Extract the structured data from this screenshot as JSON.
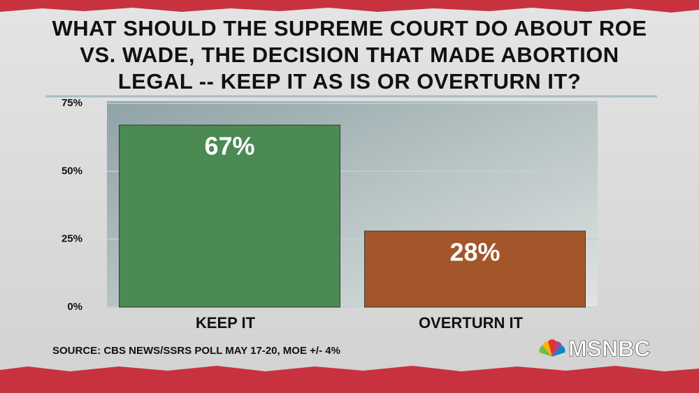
{
  "chart_data": {
    "type": "bar",
    "title": "WHAT SHOULD THE SUPREME COURT DO ABOUT ROE VS. WADE, THE DECISION THAT MADE ABORTION LEGAL -- KEEP IT AS IS OR OVERTURN IT?",
    "categories": [
      "KEEP IT",
      "OVERTURN IT"
    ],
    "values": [
      67,
      28
    ],
    "value_labels": [
      "67%",
      "28%"
    ],
    "colors": [
      "#4b8a52",
      "#a2562a"
    ],
    "ylim": [
      0,
      75
    ],
    "yticks": [
      {
        "value": 0,
        "label": "0%"
      },
      {
        "value": 25,
        "label": "25%"
      },
      {
        "value": 50,
        "label": "50%"
      },
      {
        "value": 75,
        "label": "75%"
      }
    ],
    "grid": true,
    "source": "SOURCE: CBS NEWS/SSRS POLL MAY 17-20, MOE +/- 4%",
    "branding": "MSNBC"
  }
}
